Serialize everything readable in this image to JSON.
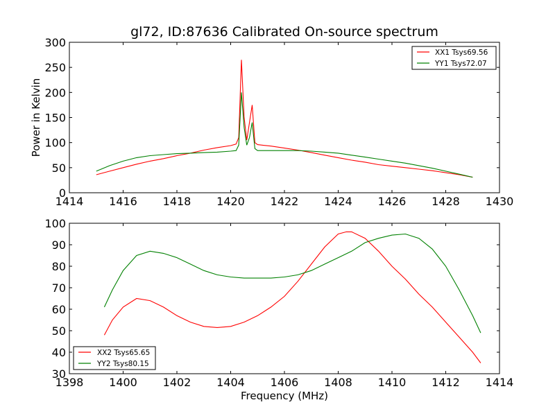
{
  "chart_data": [
    {
      "type": "line",
      "title": "gl72, ID:87636 Calibrated On-source spectrum",
      "xlabel": "",
      "ylabel": "Power in Kelvin",
      "xlim": [
        1414,
        1430
      ],
      "ylim": [
        0,
        300
      ],
      "xticks": [
        "1414",
        "1416",
        "1418",
        "1420",
        "1422",
        "1424",
        "1426",
        "1428",
        "1430"
      ],
      "yticks": [
        "0",
        "50",
        "100",
        "150",
        "200",
        "250",
        "300"
      ],
      "legend_position": "top-right",
      "series": [
        {
          "name": "XX1 Tsys69.56",
          "color": "#ff0000",
          "x": [
            1415.0,
            1415.5,
            1416.0,
            1416.5,
            1417.0,
            1417.5,
            1418.0,
            1418.5,
            1419.0,
            1419.5,
            1420.0,
            1420.2,
            1420.3,
            1420.4,
            1420.5,
            1420.6,
            1420.7,
            1420.8,
            1420.9,
            1421.0,
            1421.5,
            1422.0,
            1422.5,
            1423.0,
            1423.5,
            1424.0,
            1424.5,
            1425.0,
            1425.5,
            1426.0,
            1426.5,
            1427.0,
            1427.5,
            1428.0,
            1428.5,
            1429.0
          ],
          "y": [
            36,
            43,
            50,
            57,
            63,
            68,
            74,
            79,
            85,
            90,
            94,
            97,
            110,
            265,
            150,
            105,
            140,
            175,
            100,
            96,
            93,
            89,
            85,
            80,
            75,
            70,
            65,
            61,
            56,
            53,
            50,
            47,
            44,
            40,
            36,
            31
          ]
        },
        {
          "name": "YY1 Tsys72.07",
          "color": "#008000",
          "x": [
            1415.0,
            1415.5,
            1416.0,
            1416.5,
            1417.0,
            1417.5,
            1418.0,
            1418.5,
            1419.0,
            1419.5,
            1420.0,
            1420.2,
            1420.3,
            1420.4,
            1420.5,
            1420.6,
            1420.7,
            1420.8,
            1420.9,
            1421.0,
            1421.5,
            1422.0,
            1422.5,
            1423.0,
            1423.5,
            1424.0,
            1424.5,
            1425.0,
            1425.5,
            1426.0,
            1426.5,
            1427.0,
            1427.5,
            1428.0,
            1428.5,
            1429.0
          ],
          "y": [
            43,
            54,
            63,
            70,
            74,
            76,
            78,
            79,
            80,
            81,
            83,
            84,
            95,
            200,
            130,
            95,
            110,
            140,
            88,
            84,
            84,
            84,
            84,
            83,
            81,
            79,
            75,
            71,
            67,
            63,
            59,
            54,
            49,
            43,
            37,
            31
          ]
        }
      ]
    },
    {
      "type": "line",
      "title": "",
      "xlabel": "Frequency (MHz)",
      "ylabel": "",
      "xlim": [
        1398,
        1414
      ],
      "ylim": [
        30,
        100
      ],
      "xticks": [
        "1398",
        "1400",
        "1402",
        "1404",
        "1406",
        "1408",
        "1410",
        "1412",
        "1414"
      ],
      "yticks": [
        "30",
        "40",
        "50",
        "60",
        "70",
        "80",
        "90",
        "100"
      ],
      "legend_position": "bottom-left",
      "series": [
        {
          "name": "XX2 Tsys65.65",
          "color": "#ff0000",
          "x": [
            1399.3,
            1399.6,
            1400.0,
            1400.5,
            1401.0,
            1401.5,
            1402.0,
            1402.5,
            1403.0,
            1403.5,
            1404.0,
            1404.5,
            1405.0,
            1405.5,
            1406.0,
            1406.5,
            1407.0,
            1407.5,
            1408.0,
            1408.3,
            1408.5,
            1409.0,
            1409.5,
            1410.0,
            1410.5,
            1411.0,
            1411.5,
            1412.0,
            1412.5,
            1413.0,
            1413.3
          ],
          "y": [
            48,
            55,
            61,
            65,
            64,
            61,
            57,
            54,
            52,
            51.5,
            52,
            54,
            57,
            61,
            66,
            73,
            81,
            89,
            95,
            96,
            96,
            93,
            87,
            80,
            74,
            67,
            61,
            54,
            47,
            40,
            35
          ]
        },
        {
          "name": "YY2 Tsys80.15",
          "color": "#008000",
          "x": [
            1399.3,
            1399.6,
            1400.0,
            1400.5,
            1401.0,
            1401.5,
            1402.0,
            1402.5,
            1403.0,
            1403.5,
            1404.0,
            1404.5,
            1405.0,
            1405.5,
            1406.0,
            1406.5,
            1407.0,
            1407.5,
            1408.0,
            1408.5,
            1409.0,
            1409.5,
            1410.0,
            1410.5,
            1411.0,
            1411.5,
            1412.0,
            1412.5,
            1413.0,
            1413.3
          ],
          "y": [
            61,
            69,
            78,
            85,
            87,
            86,
            84,
            81,
            78,
            76,
            75,
            74.5,
            74.5,
            74.5,
            75,
            76,
            78,
            81,
            84,
            87,
            91,
            93,
            94.5,
            95,
            93,
            88,
            80,
            69,
            57,
            49
          ]
        }
      ]
    }
  ]
}
